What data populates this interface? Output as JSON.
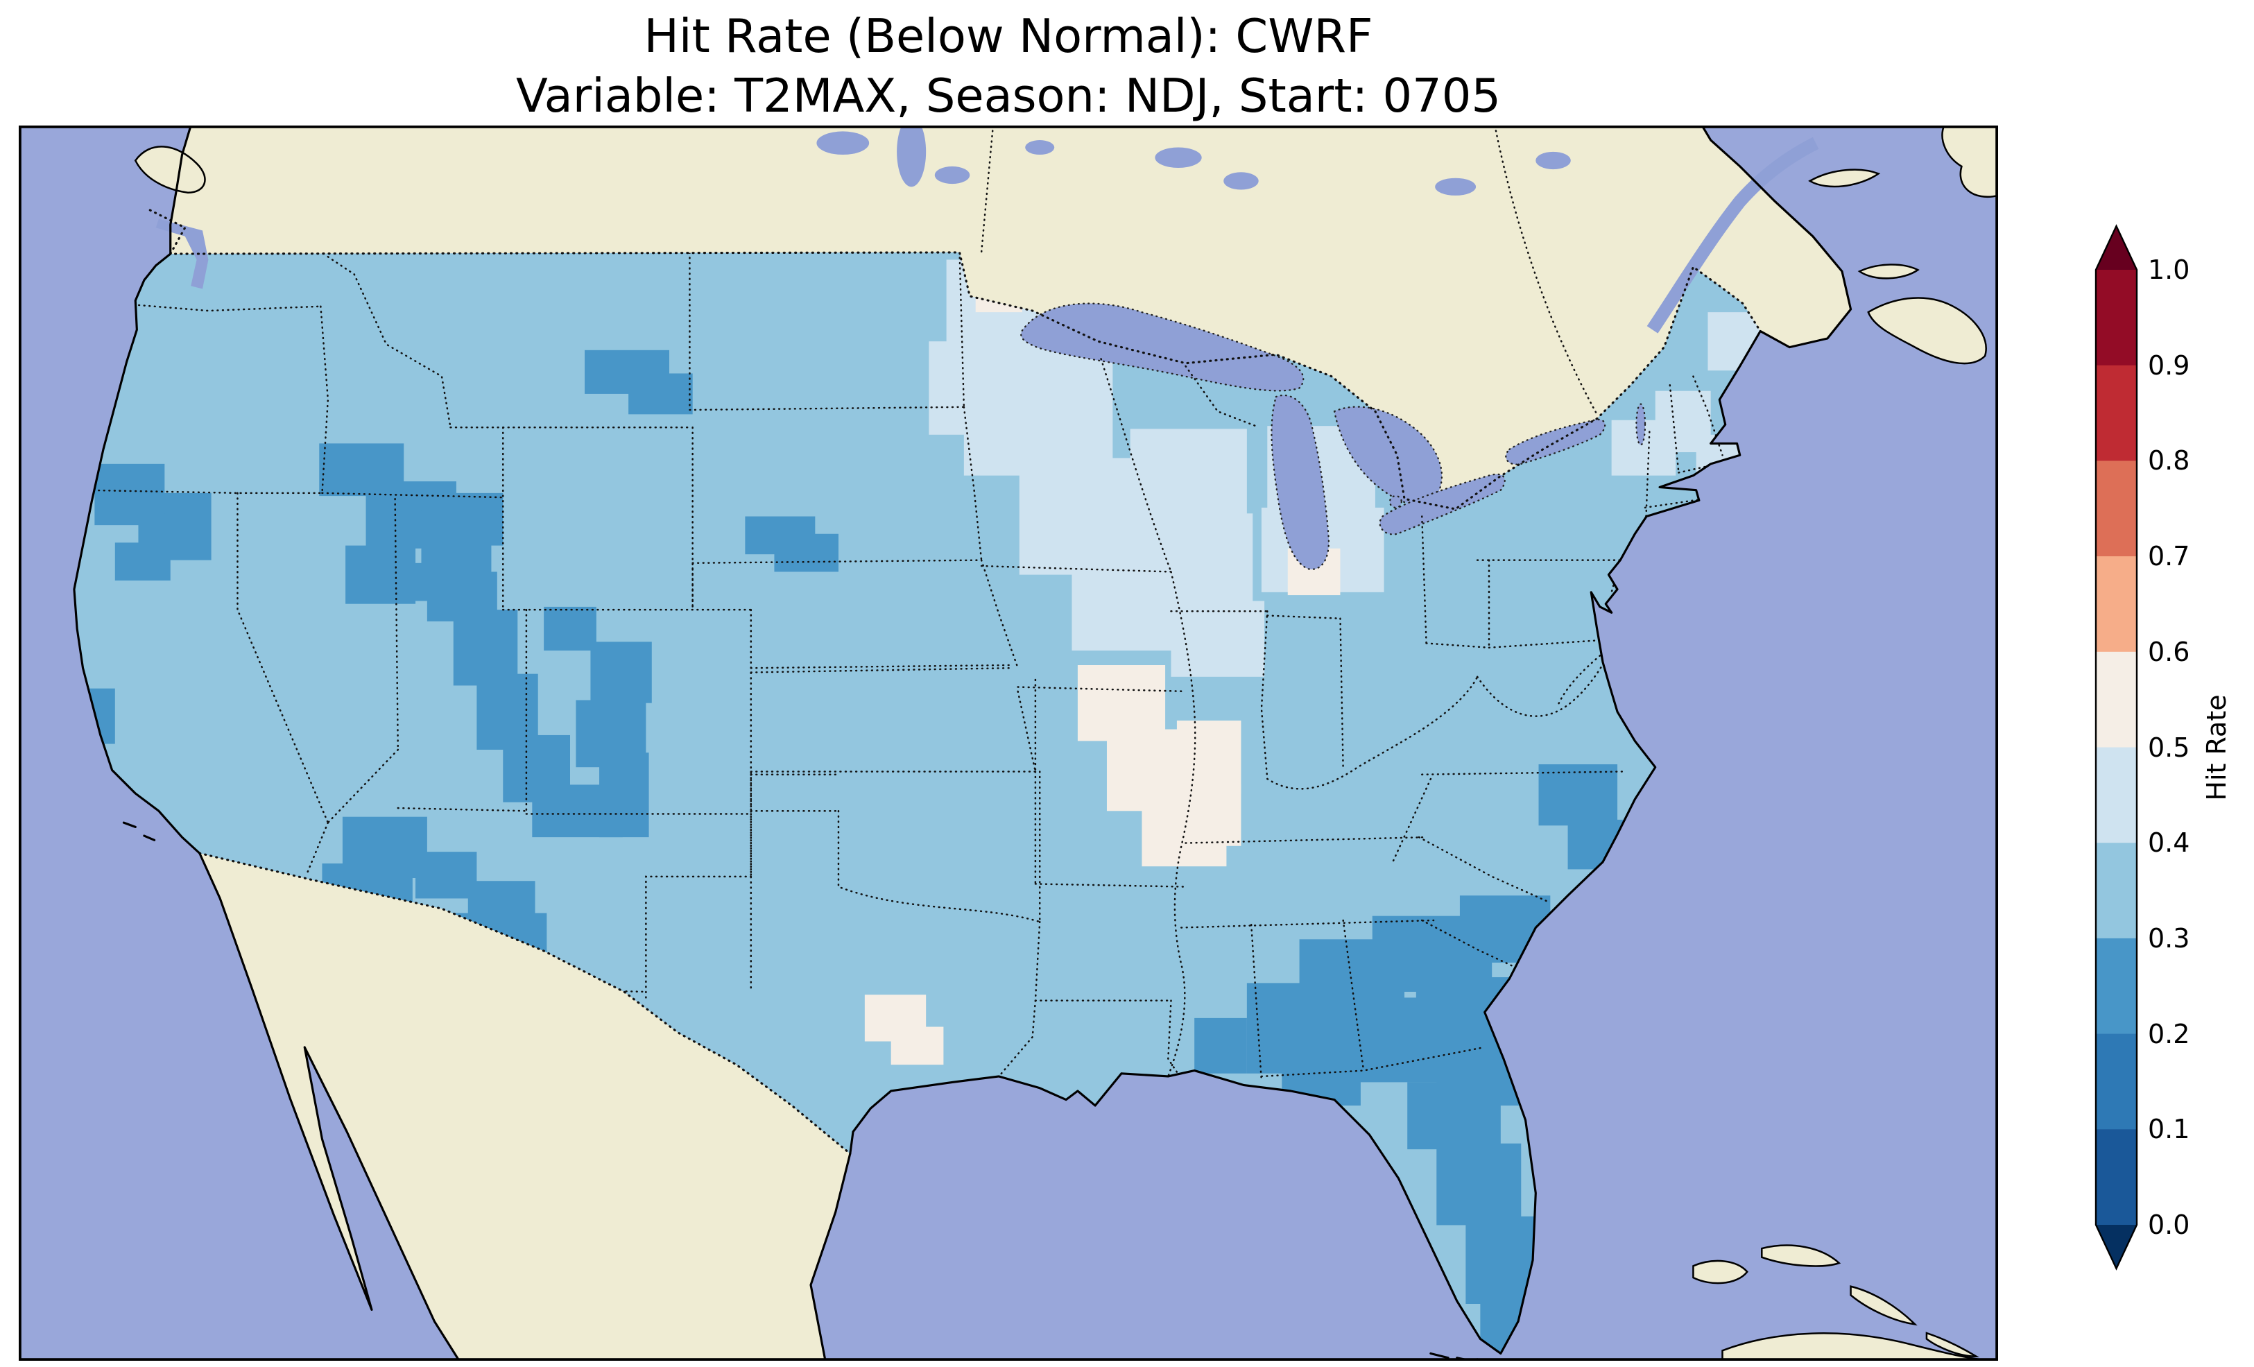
{
  "title": {
    "line1": "Hit Rate (Below Normal): CWRF",
    "line2": "Variable: T2MAX, Season: NDJ, Start: 0705"
  },
  "chart_data": {
    "type": "heatmap",
    "title": "Hit Rate (Below Normal): CWRF",
    "subtitle": "Variable: T2MAX, Season: NDJ, Start: 0705",
    "model": "CWRF",
    "metric": "Hit Rate (Below Normal)",
    "variable": "T2MAX",
    "season": "NDJ",
    "start": "0705",
    "colorbar": {
      "label": "Hit Rate",
      "orientation": "vertical",
      "ticks": [
        "1.0",
        "0.9",
        "0.8",
        "0.7",
        "0.6",
        "0.5",
        "0.4",
        "0.3",
        "0.2",
        "0.1",
        "0.0"
      ],
      "extend_over_color": "#67001f",
      "extend_under_color": "#053061",
      "bins": [
        {
          "range": "0.9-1.0",
          "color": "#930c26"
        },
        {
          "range": "0.8-0.9",
          "color": "#bf2b33"
        },
        {
          "range": "0.7-0.8",
          "color": "#dd6f57"
        },
        {
          "range": "0.6-0.7",
          "color": "#f6ad89"
        },
        {
          "range": "0.5-0.6",
          "color": "#f5eee6"
        },
        {
          "range": "0.4-0.5",
          "color": "#cfe3f0"
        },
        {
          "range": "0.3-0.4",
          "color": "#93c6df"
        },
        {
          "range": "0.2-0.3",
          "color": "#4896c8"
        },
        {
          "range": "0.1-0.2",
          "color": "#2e79b5"
        },
        {
          "range": "0.0-0.1",
          "color": "#1a5899"
        }
      ]
    },
    "colors": {
      "ocean": "#99a7da",
      "lakes": "#8fa0d6",
      "land_other": "#efecd3",
      "us_base": "#93c6df",
      "bin_02_03": "#4896c8",
      "bin_04_05": "#cfe3f0",
      "bin_05_06": "#f5eee6",
      "coast": "#000000"
    },
    "map": {
      "region": "Contiguous United States",
      "dominant_bin": "0.3-0.4",
      "regions": [
        {
          "region": "CONUS base (most of West, Plains, Texas, Gulf, Mid-Atlantic, Northeast)",
          "hit_rate_bin": "0.3-0.4"
        },
        {
          "region": "Northern California / SW Oregon coast",
          "hit_rate_bin": "0.2-0.3"
        },
        {
          "region": "Central Idaho / Western Montana",
          "hit_rate_bin": "0.2-0.3"
        },
        {
          "region": "North-central Montana",
          "hit_rate_bin": "0.2-0.3"
        },
        {
          "region": "SW Montana / NW Wyoming",
          "hit_rate_bin": "0.2-0.3"
        },
        {
          "region": "Eastern Nevada / Utah",
          "hit_rate_bin": "0.2-0.3"
        },
        {
          "region": "Arizona / Western New Mexico",
          "hit_rate_bin": "0.2-0.3"
        },
        {
          "region": "Southeast: Alabama, Georgia, South Carolina, Florida peninsula",
          "hit_rate_bin": "0.2-0.3"
        },
        {
          "region": "Eastern North Carolina coast",
          "hit_rate_bin": "0.2-0.3"
        },
        {
          "region": "Upper Midwest: Minnesota, Wisconsin, Michigan",
          "hit_rate_bin": "0.4-0.5"
        },
        {
          "region": "Northern New England patches",
          "hit_rate_bin": "0.4-0.5"
        },
        {
          "region": "Iowa / northern Missouri / western Illinois",
          "hit_rate_bin": "0.5-0.6"
        },
        {
          "region": "Central Oklahoma spot",
          "hit_rate_bin": "0.5-0.6"
        },
        {
          "region": "Central Lower Michigan spot",
          "hit_rate_bin": "0.5-0.6"
        }
      ]
    }
  }
}
